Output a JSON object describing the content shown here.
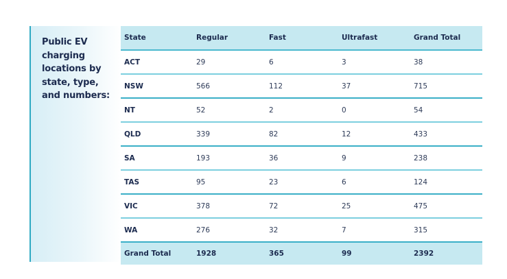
{
  "sidebar": {
    "title": "Public EV charging locations by state, type, and numbers:"
  },
  "table": {
    "headers": [
      "State",
      "Regular",
      "Fast",
      "Ultrafast",
      "Grand Total"
    ],
    "rows": [
      [
        "ACT",
        "29",
        "6",
        "3",
        "38"
      ],
      [
        "NSW",
        "566",
        "112",
        "37",
        "715"
      ],
      [
        "NT",
        "52",
        "2",
        "0",
        "54"
      ],
      [
        "QLD",
        "339",
        "82",
        "12",
        "433"
      ],
      [
        "SA",
        "193",
        "36",
        "9",
        "238"
      ],
      [
        "TAS",
        "95",
        "23",
        "6",
        "124"
      ],
      [
        "VIC",
        "378",
        "72",
        "25",
        "475"
      ],
      [
        "WA",
        "276",
        "32",
        "7",
        "315"
      ]
    ],
    "total": [
      "Grand Total",
      "1928",
      "365",
      "99",
      "2392"
    ]
  },
  "colors": {
    "header_bg": "#c6e9f1",
    "accent_line": "#2ea9c2",
    "text_dark": "#1c2b4f"
  }
}
